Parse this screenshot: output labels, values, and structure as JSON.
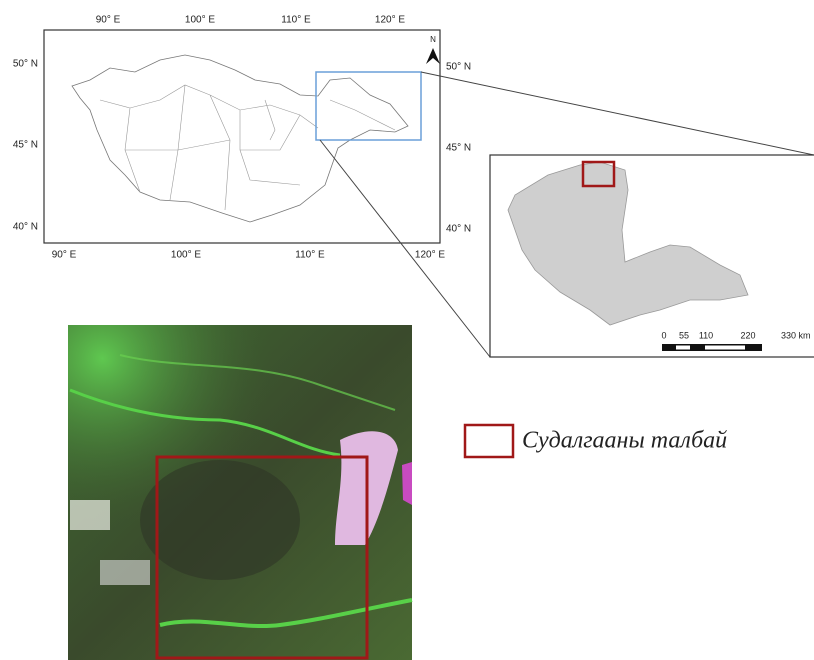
{
  "map": {
    "top_labels": [
      "90° E",
      "100° E",
      "110° E",
      "120° E"
    ],
    "bottom_labels": [
      "90° E",
      "100° E",
      "110° E",
      "120° E"
    ],
    "left_labels": [
      "50° N",
      "45° N",
      "40° N"
    ],
    "right_labels": [
      "50° N",
      "45° N",
      "40° N"
    ],
    "north": "N"
  },
  "inset": {
    "scale_labels": [
      "0",
      "55",
      "110",
      "220",
      "330 km"
    ]
  },
  "legend": {
    "label": "Судалгааны талбай"
  }
}
